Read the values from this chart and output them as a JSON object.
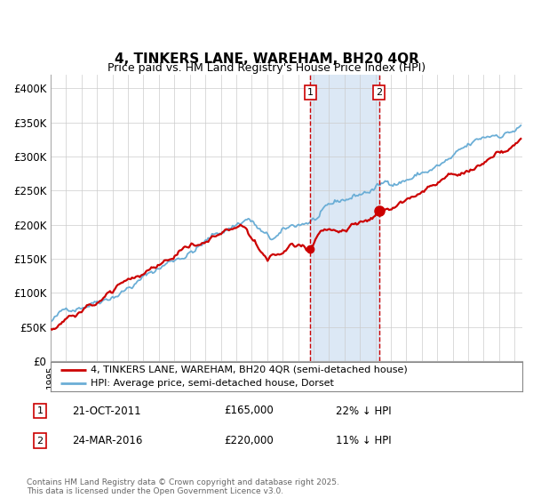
{
  "title": "4, TINKERS LANE, WAREHAM, BH20 4QR",
  "subtitle": "Price paid vs. HM Land Registry's House Price Index (HPI)",
  "ylabel_ticks": [
    "£0",
    "£50K",
    "£100K",
    "£150K",
    "£200K",
    "£250K",
    "£300K",
    "£350K",
    "£400K"
  ],
  "ytick_values": [
    0,
    50000,
    100000,
    150000,
    200000,
    250000,
    300000,
    350000,
    400000
  ],
  "ylim": [
    0,
    420000
  ],
  "xlim_start": 1995.0,
  "xlim_end": 2025.5,
  "purchase1_date": 2011.8,
  "purchase2_date": 2016.23,
  "purchase1_price": 165000,
  "purchase2_price": 220000,
  "purchase1_label": "1",
  "purchase2_label": "2",
  "shade_color": "#dce8f5",
  "dashed_color": "#cc0000",
  "hpi_color": "#6baed6",
  "price_color": "#cc0000",
  "legend1_label": "4, TINKERS LANE, WAREHAM, BH20 4QR (semi-detached house)",
  "legend2_label": "HPI: Average price, semi-detached house, Dorset",
  "annot1_date": "21-OCT-2011",
  "annot1_price": "£165,000",
  "annot1_hpi": "22% ↓ HPI",
  "annot2_date": "24-MAR-2016",
  "annot2_price": "£220,000",
  "annot2_hpi": "11% ↓ HPI",
  "footer": "Contains HM Land Registry data © Crown copyright and database right 2025.\nThis data is licensed under the Open Government Licence v3.0."
}
